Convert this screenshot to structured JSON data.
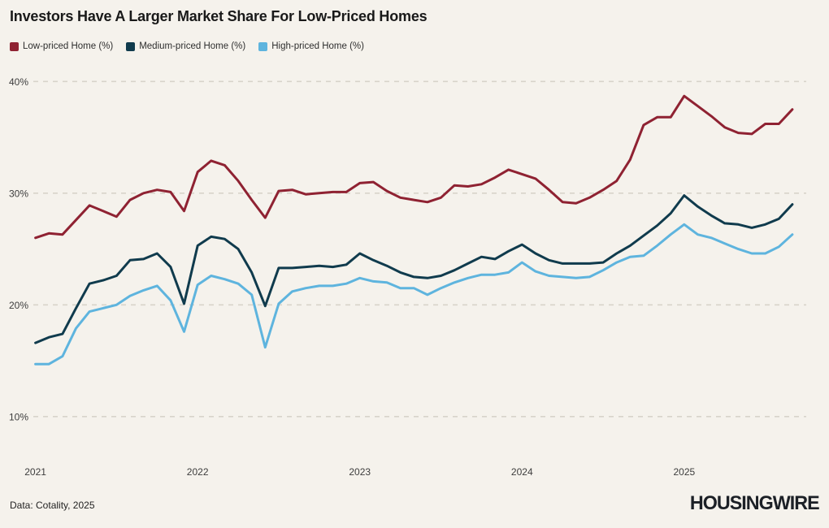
{
  "title": "Investors Have A Larger Market Share For Low-Priced Homes",
  "legend": {
    "items": [
      {
        "label": "Low-priced Home (%)",
        "color": "#8f2232"
      },
      {
        "label": "Medium-priced Home (%)",
        "color": "#103b4d"
      },
      {
        "label": "High-priced Home (%)",
        "color": "#5eb4de"
      }
    ]
  },
  "footer": {
    "source": "Data: Cotality, 2025",
    "logo": "HOUSINGWIRE"
  },
  "colors": {
    "background": "#f5f2ec",
    "gridline": "#d8d4ca",
    "tick_text": "#3d3d3d"
  },
  "chart_data": {
    "type": "line",
    "title": "Investors Have A Larger Market Share For Low-Priced Homes",
    "xlabel": "",
    "ylabel": "",
    "ylim": [
      10,
      40
    ],
    "grid": "horizontal-dashed",
    "legend_position": "top-left",
    "y_ticks": [
      40,
      30,
      20,
      10
    ],
    "y_tick_suffix": "%",
    "x_tick_labels": [
      "2021",
      "2022",
      "2023",
      "2024",
      "2025"
    ],
    "x": [
      "2021-01",
      "2021-02",
      "2021-03",
      "2021-04",
      "2021-05",
      "2021-06",
      "2021-07",
      "2021-08",
      "2021-09",
      "2021-10",
      "2021-11",
      "2021-12",
      "2022-01",
      "2022-02",
      "2022-03",
      "2022-04",
      "2022-05",
      "2022-06",
      "2022-07",
      "2022-08",
      "2022-09",
      "2022-10",
      "2022-11",
      "2022-12",
      "2023-01",
      "2023-02",
      "2023-03",
      "2023-04",
      "2023-05",
      "2023-06",
      "2023-07",
      "2023-08",
      "2023-09",
      "2023-10",
      "2023-11",
      "2023-12",
      "2024-01",
      "2024-02",
      "2024-03",
      "2024-04",
      "2024-05",
      "2024-06",
      "2024-07",
      "2024-08",
      "2024-09",
      "2024-10",
      "2024-11",
      "2024-12",
      "2025-01",
      "2025-02",
      "2025-03",
      "2025-04",
      "2025-05",
      "2025-06",
      "2025-07",
      "2025-08",
      "2025-09"
    ],
    "series": [
      {
        "name": "Low-priced Home (%)",
        "color": "#8f2232",
        "values": [
          26.0,
          26.4,
          26.3,
          27.6,
          28.9,
          28.4,
          27.9,
          29.4,
          30.0,
          30.3,
          30.1,
          28.4,
          31.9,
          32.9,
          32.5,
          31.1,
          29.4,
          27.8,
          30.2,
          30.3,
          29.9,
          30.0,
          30.1,
          30.1,
          30.9,
          31.0,
          30.2,
          29.6,
          29.4,
          29.2,
          29.6,
          30.7,
          30.6,
          30.8,
          31.4,
          32.1,
          31.7,
          31.3,
          30.3,
          29.2,
          29.1,
          29.6,
          30.3,
          31.1,
          33.0,
          36.1,
          36.8,
          36.8,
          38.7,
          37.8,
          36.9,
          35.9,
          35.4,
          35.3,
          36.2,
          36.2,
          37.5
        ]
      },
      {
        "name": "Medium-priced Home (%)",
        "color": "#103b4d",
        "values": [
          16.6,
          17.1,
          17.4,
          19.7,
          21.9,
          22.2,
          22.6,
          24.0,
          24.1,
          24.6,
          23.4,
          20.1,
          25.3,
          26.1,
          25.9,
          25.0,
          22.9,
          19.9,
          23.3,
          23.3,
          23.4,
          23.5,
          23.4,
          23.6,
          24.6,
          24.0,
          23.5,
          22.9,
          22.5,
          22.4,
          22.6,
          23.1,
          23.7,
          24.3,
          24.1,
          24.8,
          25.4,
          24.6,
          24.0,
          23.7,
          23.7,
          23.7,
          23.8,
          24.6,
          25.3,
          26.2,
          27.1,
          28.2,
          29.8,
          28.8,
          28.0,
          27.3,
          27.2,
          26.9,
          27.2,
          27.7,
          29.0
        ]
      },
      {
        "name": "High-priced Home (%)",
        "color": "#5eb4de",
        "values": [
          14.7,
          14.7,
          15.4,
          17.9,
          19.4,
          19.7,
          20.0,
          20.8,
          21.3,
          21.7,
          20.4,
          17.6,
          21.8,
          22.6,
          22.3,
          21.9,
          20.9,
          16.2,
          20.1,
          21.2,
          21.5,
          21.7,
          21.7,
          21.9,
          22.4,
          22.1,
          22.0,
          21.5,
          21.5,
          20.9,
          21.5,
          22.0,
          22.4,
          22.7,
          22.7,
          22.9,
          23.8,
          23.0,
          22.6,
          22.5,
          22.4,
          22.5,
          23.1,
          23.8,
          24.3,
          24.4,
          25.3,
          26.3,
          27.2,
          26.3,
          26.0,
          25.5,
          25.0,
          24.6,
          24.6,
          25.2,
          26.3
        ]
      }
    ]
  }
}
